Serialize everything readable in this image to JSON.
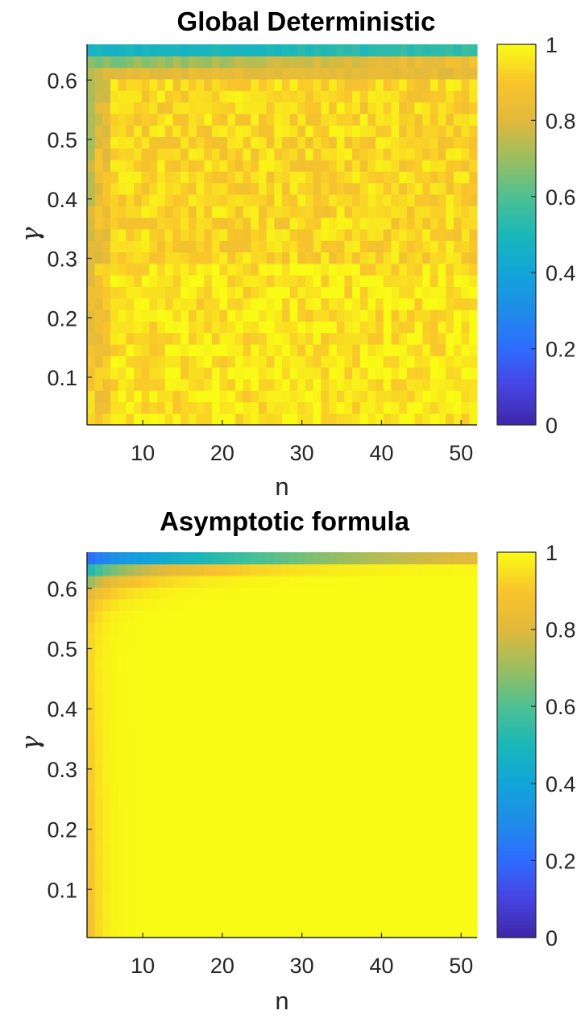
{
  "chart_data": [
    {
      "type": "heatmap",
      "title": "Global Deterministic",
      "xlabel": "n",
      "ylabel": "γ",
      "xlim": [
        3,
        52
      ],
      "ylim": [
        0.02,
        0.66
      ],
      "xticks": [
        10,
        20,
        30,
        40,
        50
      ],
      "yticks": [
        0.1,
        0.2,
        0.3,
        0.4,
        0.5,
        0.6
      ],
      "colorbar": {
        "range": [
          0,
          1
        ],
        "ticks": [
          0,
          0.2,
          0.4,
          0.6,
          0.8,
          1
        ],
        "colormap": "parula"
      },
      "grid": "off",
      "description_of_values": "noisy surface near 0.9-1.0; top row about 0.45-0.55; left edge and first row after n=3 lower (0.5-0.8)",
      "grid_size": {
        "nx": 50,
        "ny": 33
      },
      "noise": 0.05
    },
    {
      "type": "heatmap",
      "title": "Asymptotic formula",
      "xlabel": "n",
      "ylabel": "γ",
      "xlim": [
        3,
        52
      ],
      "ylim": [
        0.02,
        0.66
      ],
      "xticks": [
        10,
        20,
        30,
        40,
        50
      ],
      "yticks": [
        0.1,
        0.2,
        0.3,
        0.4,
        0.5,
        0.6
      ],
      "colorbar": {
        "range": [
          0,
          1
        ],
        "ticks": [
          0,
          0.2,
          0.4,
          0.6,
          0.8,
          1
        ],
        "colormap": "parula"
      },
      "grid": "off",
      "grid_size": {
        "nx": 50,
        "ny": 33
      },
      "noise": 0
    }
  ],
  "colormap_stops": [
    [
      0.0,
      "#3e26a8"
    ],
    [
      0.1,
      "#4743e0"
    ],
    [
      0.2,
      "#2f6bff"
    ],
    [
      0.3,
      "#1e8ce8"
    ],
    [
      0.4,
      "#12a4d9"
    ],
    [
      0.5,
      "#1ab7b9"
    ],
    [
      0.6,
      "#4dc092"
    ],
    [
      0.7,
      "#9bbe60"
    ],
    [
      0.8,
      "#e1b93c"
    ],
    [
      0.9,
      "#f9c42c"
    ],
    [
      1.0,
      "#f9fb15"
    ]
  ]
}
